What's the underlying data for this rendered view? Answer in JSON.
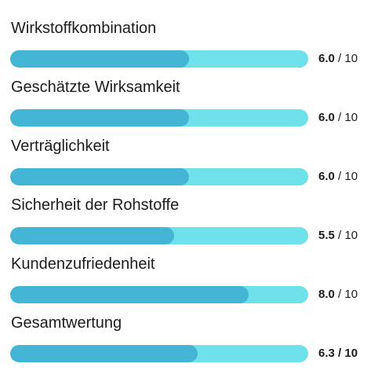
{
  "ratings": [
    {
      "label": "Wirkstoffkombination",
      "score": "6.0",
      "max": "10",
      "value": 6.0
    },
    {
      "label": "Geschätzte Wirksamkeit",
      "score": "6.0",
      "max": "10",
      "value": 6.0
    },
    {
      "label": "Verträglichkeit",
      "score": "6.0",
      "max": "10",
      "value": 6.0
    },
    {
      "label": "Sicherheit der Rohstoffe",
      "score": "5.5",
      "max": "10",
      "value": 5.5
    },
    {
      "label": "Kundenzufriedenheit",
      "score": "8.0",
      "max": "10",
      "value": 8.0
    },
    {
      "label": "Gesamtwertung",
      "score": "6.3",
      "max": "10",
      "value": 6.3
    }
  ],
  "colors": {
    "track": "#6fe1eb",
    "fill": "#44b5d5",
    "text": "#1c1c1c"
  }
}
